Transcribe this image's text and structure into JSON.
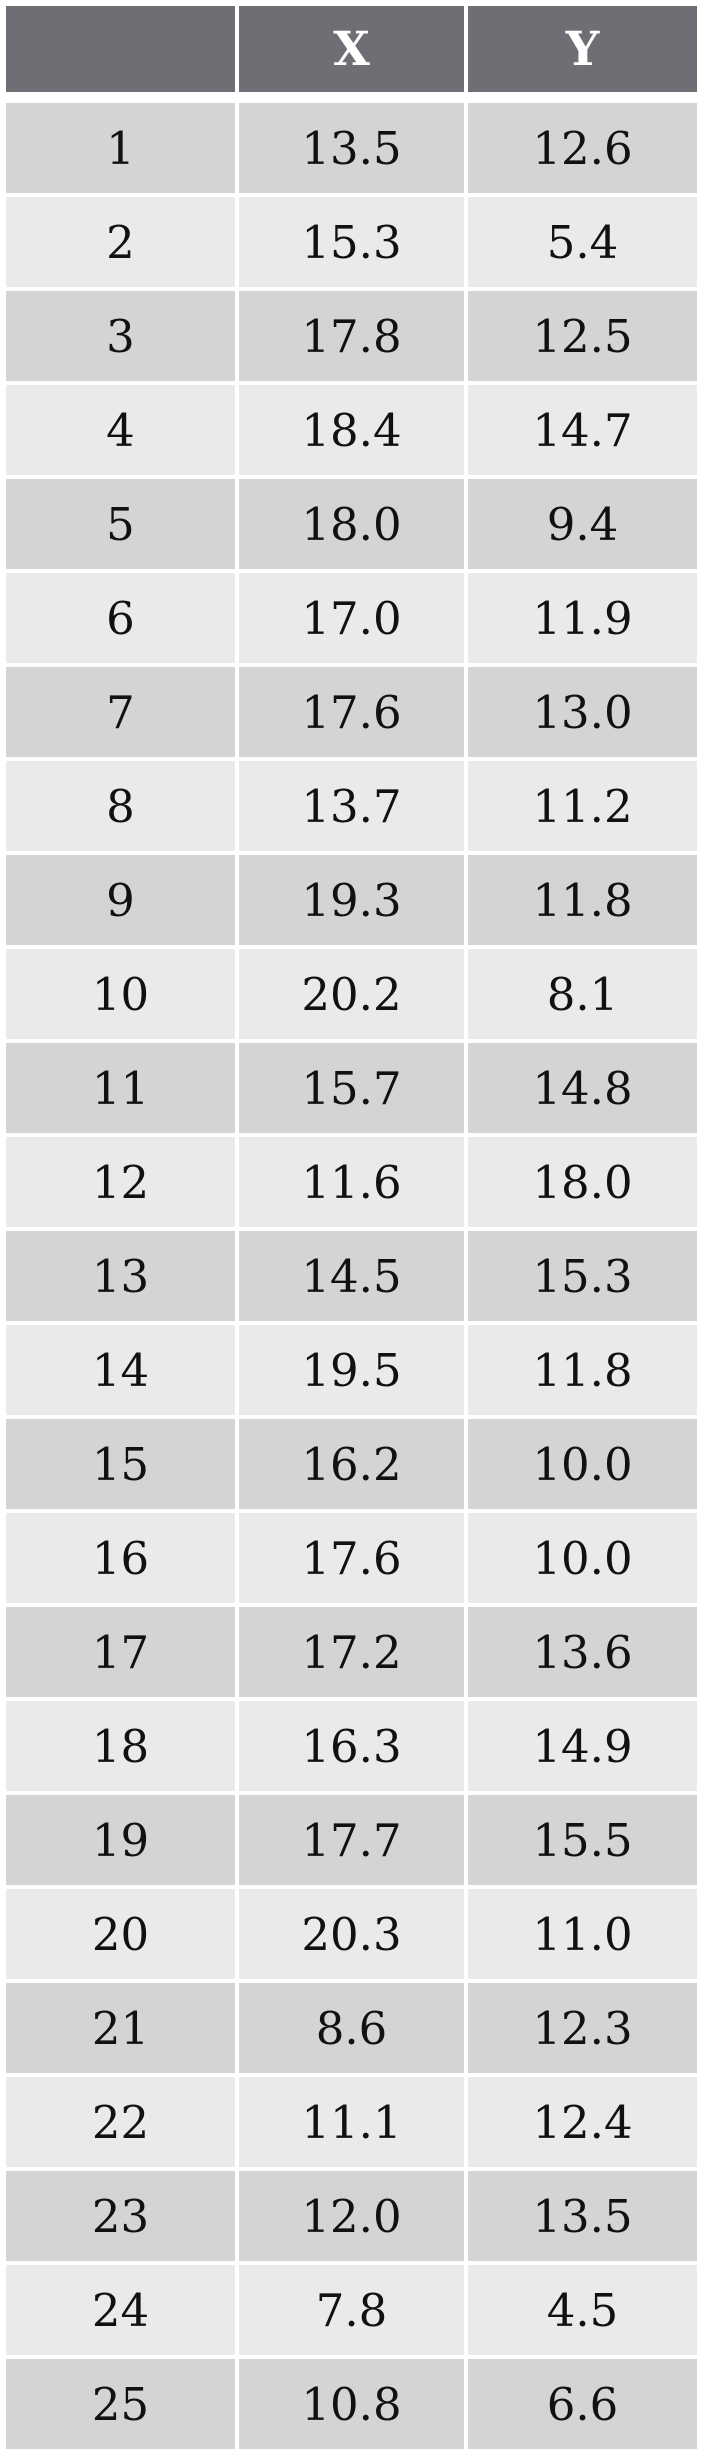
{
  "chart_data": {
    "type": "table",
    "columns": [
      "",
      "X",
      "Y"
    ],
    "rows": [
      [
        "1",
        "13.5",
        "12.6"
      ],
      [
        "2",
        "15.3",
        "5.4"
      ],
      [
        "3",
        "17.8",
        "12.5"
      ],
      [
        "4",
        "18.4",
        "14.7"
      ],
      [
        "5",
        "18.0",
        "9.4"
      ],
      [
        "6",
        "17.0",
        "11.9"
      ],
      [
        "7",
        "17.6",
        "13.0"
      ],
      [
        "8",
        "13.7",
        "11.2"
      ],
      [
        "9",
        "19.3",
        "11.8"
      ],
      [
        "10",
        "20.2",
        "8.1"
      ],
      [
        "11",
        "15.7",
        "14.8"
      ],
      [
        "12",
        "11.6",
        "18.0"
      ],
      [
        "13",
        "14.5",
        "15.3"
      ],
      [
        "14",
        "19.5",
        "11.8"
      ],
      [
        "15",
        "16.2",
        "10.0"
      ],
      [
        "16",
        "17.6",
        "10.0"
      ],
      [
        "17",
        "17.2",
        "13.6"
      ],
      [
        "18",
        "16.3",
        "14.9"
      ],
      [
        "19",
        "17.7",
        "15.5"
      ],
      [
        "20",
        "20.3",
        "11.0"
      ],
      [
        "21",
        "8.6",
        "12.3"
      ],
      [
        "22",
        "11.1",
        "12.4"
      ],
      [
        "23",
        "12.0",
        "13.5"
      ],
      [
        "24",
        "7.8",
        "4.5"
      ],
      [
        "25",
        "10.8",
        "6.6"
      ]
    ],
    "colors": {
      "header_bg": "#6e6e74",
      "header_text": "#ffffff",
      "row_odd_bg": "#d4d4d4",
      "row_even_bg": "#eaeaea"
    }
  }
}
